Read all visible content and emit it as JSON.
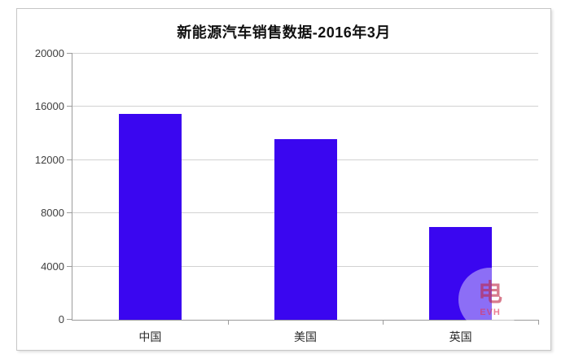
{
  "chart_data": {
    "type": "bar",
    "title": "新能源汽车销售数据-2016年3月",
    "categories": [
      "中国",
      "美国",
      "英国"
    ],
    "values": [
      15500,
      13600,
      7000
    ],
    "xlabel": "",
    "ylabel": "",
    "ylim": [
      0,
      20000
    ],
    "yticks": [
      0,
      4000,
      8000,
      12000,
      16000,
      20000
    ],
    "grid": true,
    "legend": "none",
    "bar_color": "#3a06f0"
  },
  "watermark": {
    "glyph": "电",
    "text": "EVH"
  },
  "colors": {
    "bar": "#3a06f0",
    "gridline": "#d2d2d2",
    "axis": "#9b9b9b",
    "tick_label": "#3f3f3f",
    "title": "#111111",
    "frame_border": "#c6c6c6",
    "watermark_red": "#cc2a50"
  }
}
